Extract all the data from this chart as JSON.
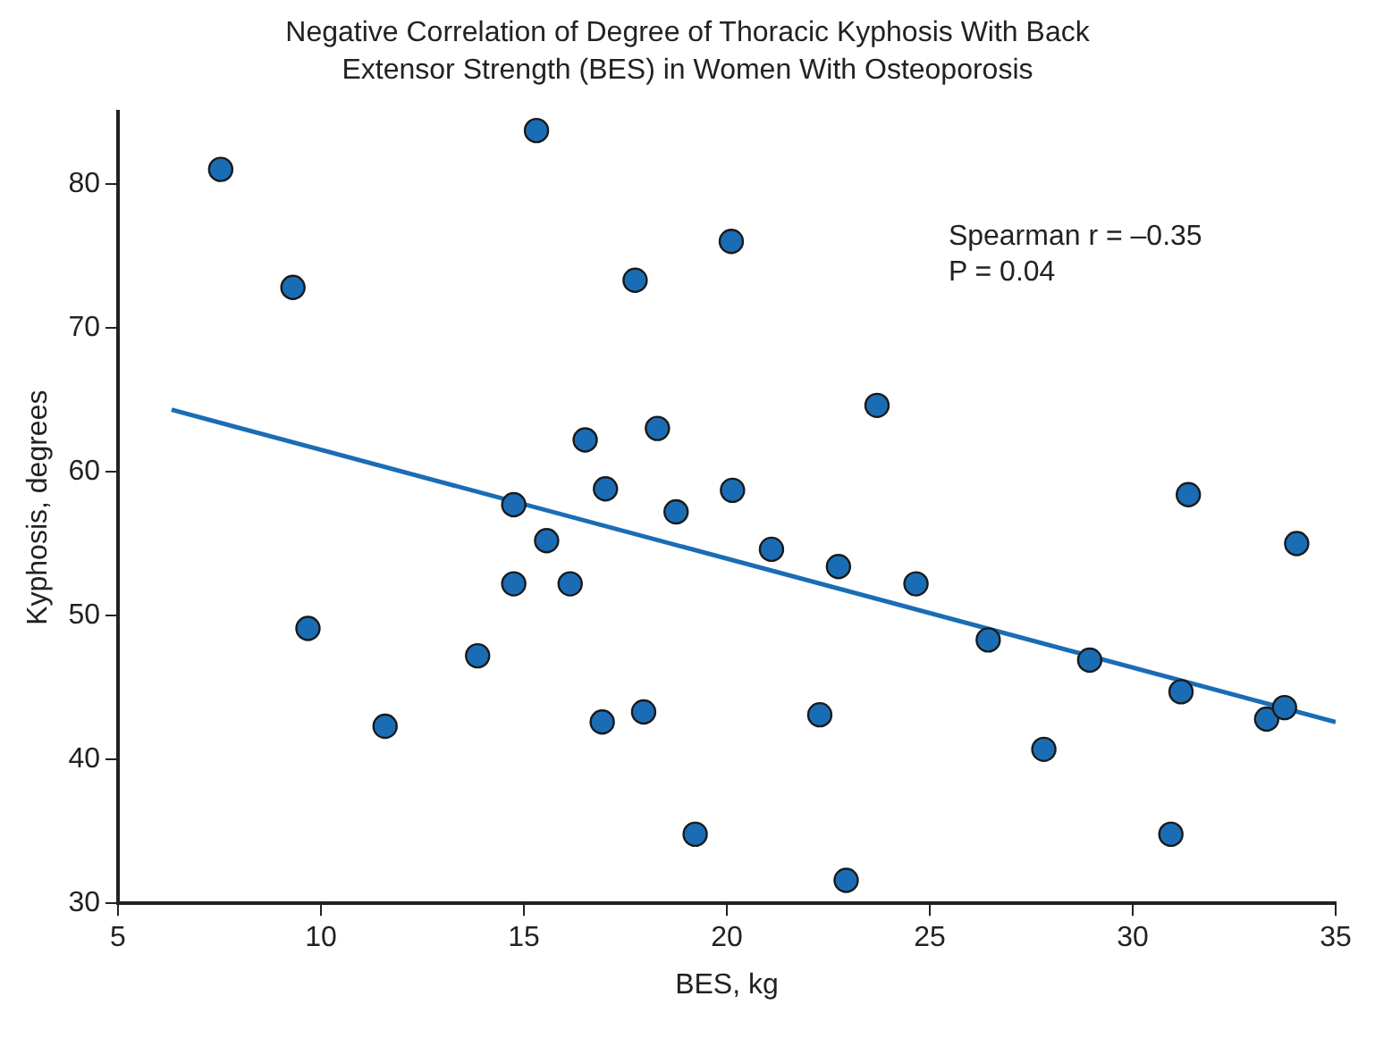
{
  "chart_data": {
    "type": "scatter",
    "title": "Negative Correlation of Degree of Thoracic Kyphosis With Back Extensor Strength (BES) in Women With Osteoporosis",
    "xlabel": "BES, kg",
    "ylabel": "Kyphosis, degrees",
    "xlim": [
      5,
      35
    ],
    "xticks": [
      5,
      10,
      15,
      20,
      25,
      30,
      35
    ],
    "ylim": [
      30,
      85
    ],
    "yticks": [
      30,
      40,
      50,
      60,
      70,
      80
    ],
    "grid": false,
    "legend": false,
    "annotations": [
      "Spearman r = –0.35",
      "P = 0.04"
    ],
    "series": [
      {
        "marker": "circle",
        "color": "#1a6db5",
        "x": [
          7.53,
          9.31,
          15.31,
          17.74,
          20.11,
          16.51,
          18.29,
          17.01,
          14.75,
          18.75,
          23.7,
          20.14,
          31.37,
          15.56,
          14.75,
          16.14,
          9.68,
          13.86,
          11.58,
          16.93,
          17.95,
          19.22,
          21.1,
          22.75,
          24.66,
          26.44,
          28.94,
          31.19,
          33.3,
          33.74,
          34.04,
          22.29,
          27.81,
          30.94,
          22.94
        ],
        "values": [
          81.0,
          72.8,
          83.7,
          73.3,
          76.0,
          62.2,
          63.0,
          58.8,
          57.7,
          57.2,
          64.6,
          58.7,
          58.4,
          55.2,
          52.2,
          52.2,
          49.1,
          47.2,
          42.3,
          42.6,
          43.3,
          34.8,
          54.6,
          53.4,
          52.2,
          48.3,
          46.9,
          44.7,
          42.8,
          43.6,
          55.0,
          43.1,
          40.7,
          34.8,
          31.6
        ]
      },
      {
        "type": "line",
        "marker": "none",
        "color": "#1a6db5",
        "x": [
          6.32,
          35
        ],
        "values": [
          64.3,
          42.6
        ]
      }
    ]
  }
}
